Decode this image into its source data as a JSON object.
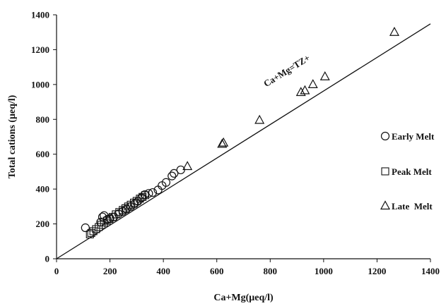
{
  "chart_data": {
    "type": "scatter",
    "xlabel": "Ca+Mg(μeq/l)",
    "ylabel": "Total cations (μeq/l)",
    "xlim": [
      0,
      1400
    ],
    "ylim": [
      0,
      1400
    ],
    "x_ticks": [
      "0",
      "200",
      "400",
      "600",
      "800",
      "1000",
      "1200",
      "1400"
    ],
    "y_ticks": [
      "0",
      "200",
      "400",
      "600",
      "800",
      "1000",
      "1200",
      "1400"
    ],
    "grid": false,
    "legend_position": "right",
    "reference_line": {
      "label": "Ca+Mg=TZ+",
      "from": [
        0,
        0
      ],
      "to": [
        1400,
        1400
      ]
    },
    "series": [
      {
        "name": "Early Melt",
        "marker": "circle",
        "x": [
          108,
          165,
          172,
          178,
          190,
          200,
          215,
          232,
          248,
          262,
          278,
          292,
          305,
          318,
          330,
          345,
          360,
          380,
          395,
          410,
          432,
          440,
          465
        ],
        "y": [
          178,
          210,
          240,
          248,
          225,
          232,
          240,
          258,
          272,
          285,
          300,
          315,
          330,
          350,
          368,
          375,
          380,
          395,
          420,
          438,
          475,
          490,
          510
        ]
      },
      {
        "name": "Peak Melt",
        "marker": "square",
        "x": [
          125,
          130,
          138,
          148,
          158,
          168,
          178,
          188,
          198,
          210,
          222,
          235,
          248,
          258,
          268,
          278,
          290,
          300,
          312,
          322,
          332
        ],
        "y": [
          140,
          148,
          158,
          170,
          182,
          195,
          208,
          218,
          228,
          240,
          255,
          268,
          280,
          290,
          300,
          310,
          322,
          332,
          345,
          355,
          365
        ]
      },
      {
        "name": "Late  Melt",
        "marker": "triangle",
        "x": [
          490,
          620,
          625,
          760,
          915,
          930,
          960,
          1005,
          1265
        ],
        "y": [
          530,
          658,
          665,
          795,
          955,
          965,
          1000,
          1045,
          1300
        ]
      }
    ]
  }
}
